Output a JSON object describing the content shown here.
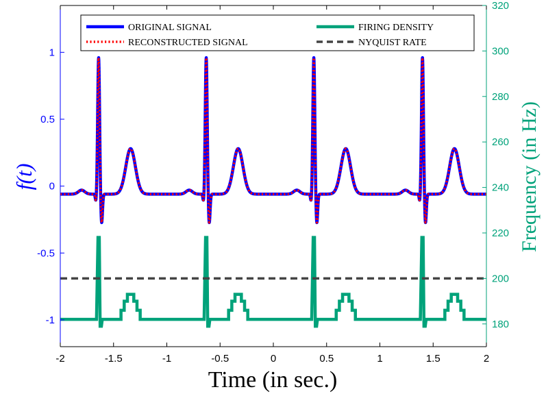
{
  "chart_data": {
    "type": "line",
    "title": "",
    "xlabel": "Time (in sec.)",
    "ylabel_left": "f(t)",
    "ylabel_right": "Frequency (in Hz)",
    "xlim": [
      -2,
      2
    ],
    "ylim_left": [
      -1.2,
      1.35
    ],
    "ylim_right": [
      170,
      320
    ],
    "x_ticks": [
      -2,
      -1.5,
      -1,
      -0.5,
      0,
      0.5,
      1,
      1.5,
      2
    ],
    "x_tick_labels": [
      "-2",
      "-1.5",
      "-1",
      "-0.5",
      "0",
      "0.5",
      "1",
      "1.5",
      "2"
    ],
    "y_left_ticks": [
      -1,
      -0.5,
      0,
      0.5,
      1
    ],
    "y_left_tick_labels": [
      "-1",
      "-0.5",
      "0",
      "0.5",
      "1"
    ],
    "y_right_ticks": [
      180,
      200,
      220,
      240,
      260,
      280,
      300,
      320
    ],
    "y_right_tick_labels": [
      "180",
      "200",
      "220",
      "240",
      "260",
      "280",
      "300",
      "320"
    ],
    "beat_times": [
      -1.64,
      -0.63,
      0.38,
      1.4
    ],
    "series": [
      {
        "name": "ORIGINAL SIGNAL",
        "axis": "left",
        "color": "#0000ff",
        "style": "solid",
        "baseline": -0.06,
        "r_peak": 0.96,
        "s_trough": -0.28,
        "t_wave_peak": 0.28,
        "t_wave_offset_s": 0.3
      },
      {
        "name": "RECONSTRUCTED SIGNAL",
        "axis": "left",
        "color": "#ff0000",
        "style": "dotted",
        "note_values": "overlaps original signal"
      },
      {
        "name": "FIRING DENSITY",
        "axis": "right",
        "color": "#00a27a",
        "style": "solid",
        "baseline_hz": 182,
        "qrs_peak_hz": 218,
        "qrs_dip_hz": 179,
        "t_wave_levels_hz": [
          186,
          190,
          193
        ]
      },
      {
        "name": "NYQUIST RATE",
        "axis": "right",
        "color": "#444444",
        "style": "dashed",
        "value_hz": 200
      }
    ],
    "legend": {
      "placement": "top",
      "entries": [
        "ORIGINAL SIGNAL",
        "RECONSTRUCTED SIGNAL",
        "FIRING DENSITY",
        "NYQUIST RATE"
      ]
    },
    "grid": false
  }
}
